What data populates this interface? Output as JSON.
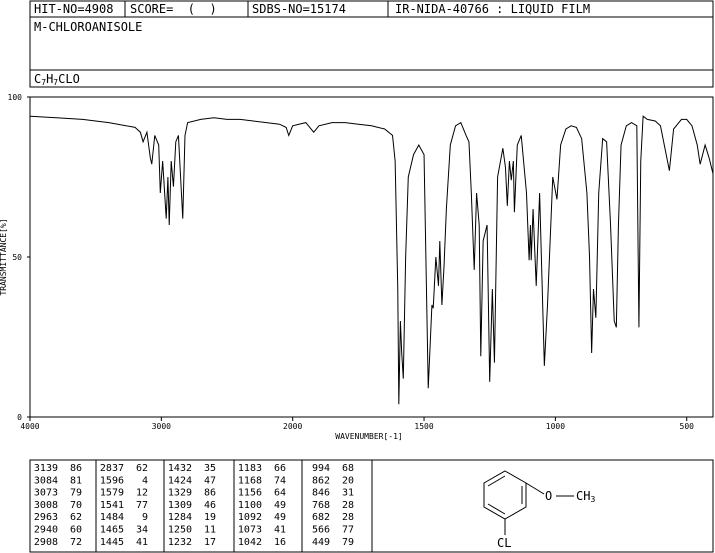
{
  "header": {
    "hit": "HIT-NO=4908",
    "score": "SCORE=  (  )",
    "sdbs": "SDBS-NO=15174",
    "method": "IR-NIDA-40766 : LIQUID FILM",
    "name": "M-CHLOROANISOLE",
    "formula": [
      "C",
      "7",
      "H",
      "7",
      "CLO"
    ]
  },
  "chart_data": {
    "type": "line",
    "xlabel": "WAVENUMBER[-1]",
    "ylabel": "TRANSMITTANCE[%]",
    "xlim": [
      4000,
      400
    ],
    "ylim": [
      0,
      100
    ],
    "xticks": [
      4000,
      3000,
      2000,
      1500,
      1000,
      500
    ],
    "yticks": [
      0,
      50,
      100
    ],
    "x_scale_break": 2000,
    "x_scale_ratio": 2,
    "color": "#000000",
    "x": [
      4000,
      3800,
      3600,
      3400,
      3200,
      3160,
      3139,
      3110,
      3084,
      3073,
      3050,
      3020,
      3008,
      2990,
      2963,
      2950,
      2940,
      2925,
      2908,
      2890,
      2870,
      2837,
      2820,
      2800,
      2700,
      2600,
      2500,
      2400,
      2300,
      2200,
      2100,
      2050,
      2030,
      2000,
      1950,
      1920,
      1900,
      1850,
      1800,
      1750,
      1700,
      1650,
      1620,
      1610,
      1600,
      1596,
      1590,
      1585,
      1579,
      1570,
      1560,
      1540,
      1520,
      1500,
      1484,
      1470,
      1465,
      1455,
      1445,
      1440,
      1432,
      1424,
      1415,
      1400,
      1380,
      1360,
      1340,
      1329,
      1320,
      1309,
      1300,
      1290,
      1284,
      1275,
      1260,
      1250,
      1240,
      1232,
      1220,
      1200,
      1190,
      1183,
      1175,
      1168,
      1160,
      1156,
      1145,
      1130,
      1110,
      1100,
      1095,
      1092,
      1085,
      1073,
      1060,
      1042,
      1030,
      1010,
      994,
      980,
      960,
      940,
      920,
      900,
      880,
      870,
      862,
      855,
      846,
      835,
      820,
      805,
      790,
      776,
      768,
      760,
      750,
      730,
      710,
      690,
      682,
      675,
      666,
      650,
      620,
      600,
      566,
      550,
      520,
      500,
      480,
      460,
      449,
      430,
      415,
      400
    ],
    "values": [
      94,
      93.5,
      93,
      92,
      90.5,
      89,
      86,
      89,
      81,
      79,
      88,
      85,
      70,
      80,
      62,
      75,
      60,
      80,
      72,
      86,
      88,
      62,
      88,
      92,
      93,
      93.5,
      93,
      93,
      92.5,
      92,
      91.5,
      90.5,
      88,
      91,
      92,
      89,
      91,
      92,
      92,
      91.5,
      91,
      90,
      88,
      80,
      40,
      4,
      30,
      20,
      12,
      50,
      75,
      82,
      85,
      82,
      9,
      35,
      34,
      50,
      41,
      55,
      35,
      47,
      65,
      85,
      91,
      92,
      88,
      86,
      70,
      46,
      70,
      60,
      19,
      55,
      60,
      11,
      40,
      17,
      75,
      84,
      78,
      66,
      80,
      74,
      80,
      64,
      85,
      88,
      70,
      49,
      60,
      49,
      65,
      41,
      70,
      16,
      35,
      75,
      68,
      85,
      90,
      91,
      90.5,
      87,
      70,
      50,
      20,
      40,
      31,
      70,
      87,
      86,
      60,
      30,
      28,
      60,
      85,
      91,
      92,
      91,
      28,
      80,
      94,
      93,
      92.5,
      91,
      77,
      90,
      93,
      93,
      91,
      85,
      79,
      85,
      81,
      76
    ]
  },
  "peak_table": [
    [
      [
        3139,
        86
      ],
      [
        3084,
        81
      ],
      [
        3073,
        79
      ],
      [
        3008,
        70
      ],
      [
        2963,
        62
      ],
      [
        2940,
        60
      ],
      [
        2908,
        72
      ]
    ],
    [
      [
        2837,
        62
      ],
      [
        1596,
        4
      ],
      [
        1579,
        12
      ],
      [
        1541,
        77
      ],
      [
        1484,
        9
      ],
      [
        1465,
        34
      ],
      [
        1445,
        41
      ]
    ],
    [
      [
        1432,
        35
      ],
      [
        1424,
        47
      ],
      [
        1329,
        86
      ],
      [
        1309,
        46
      ],
      [
        1284,
        19
      ],
      [
        1250,
        11
      ],
      [
        1232,
        17
      ]
    ],
    [
      [
        1183,
        66
      ],
      [
        1168,
        74
      ],
      [
        1156,
        64
      ],
      [
        1100,
        49
      ],
      [
        1092,
        49
      ],
      [
        1073,
        41
      ],
      [
        1042,
        16
      ]
    ],
    [
      [
        994,
        68
      ],
      [
        862,
        20
      ],
      [
        846,
        31
      ],
      [
        768,
        28
      ],
      [
        682,
        28
      ],
      [
        566,
        77
      ],
      [
        449,
        79
      ]
    ]
  ],
  "structure": {
    "oxygen": "O",
    "methyl": [
      "CH",
      "3"
    ],
    "chlorine": "CL"
  }
}
